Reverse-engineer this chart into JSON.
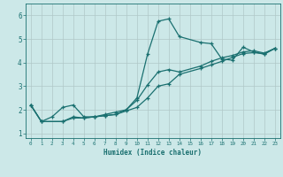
{
  "xlabel": "Humidex (Indice chaleur)",
  "xlim": [
    -0.5,
    23.5
  ],
  "ylim": [
    0.8,
    6.5
  ],
  "xticks": [
    0,
    1,
    2,
    3,
    4,
    5,
    6,
    7,
    8,
    9,
    10,
    11,
    12,
    13,
    14,
    15,
    16,
    17,
    18,
    19,
    20,
    21,
    22,
    23
  ],
  "yticks": [
    1,
    2,
    3,
    4,
    5,
    6
  ],
  "bg_color": "#cce8e8",
  "line_color": "#1a7070",
  "grid_color": "#b0c8c8",
  "lines": [
    {
      "x": [
        0,
        1,
        2,
        3,
        4,
        5,
        6,
        7,
        8,
        9,
        10,
        11,
        12,
        13,
        14,
        16,
        17,
        18,
        19,
        20,
        21,
        22,
        23
      ],
      "y": [
        2.2,
        1.5,
        1.7,
        2.1,
        2.2,
        1.7,
        1.7,
        1.8,
        1.9,
        2.0,
        2.5,
        4.35,
        5.75,
        5.85,
        5.1,
        4.85,
        4.8,
        4.15,
        4.1,
        4.65,
        4.45,
        4.35,
        4.6
      ]
    },
    {
      "x": [
        0,
        1,
        3,
        4,
        5,
        6,
        7,
        8,
        9,
        10,
        11,
        12,
        13,
        14,
        16,
        17,
        18,
        19,
        20,
        21,
        22,
        23
      ],
      "y": [
        2.2,
        1.5,
        1.5,
        1.7,
        1.65,
        1.7,
        1.75,
        1.8,
        2.0,
        2.4,
        3.05,
        3.6,
        3.7,
        3.6,
        3.85,
        4.05,
        4.2,
        4.3,
        4.45,
        4.5,
        4.4,
        4.6
      ]
    },
    {
      "x": [
        0,
        1,
        3,
        4,
        5,
        6,
        7,
        8,
        9,
        10,
        11,
        12,
        13,
        14,
        16,
        17,
        18,
        19,
        20,
        21,
        22,
        23
      ],
      "y": [
        2.2,
        1.5,
        1.5,
        1.65,
        1.65,
        1.7,
        1.75,
        1.8,
        1.95,
        2.1,
        2.5,
        3.0,
        3.1,
        3.5,
        3.75,
        3.9,
        4.05,
        4.22,
        4.38,
        4.42,
        4.38,
        4.6
      ]
    }
  ]
}
